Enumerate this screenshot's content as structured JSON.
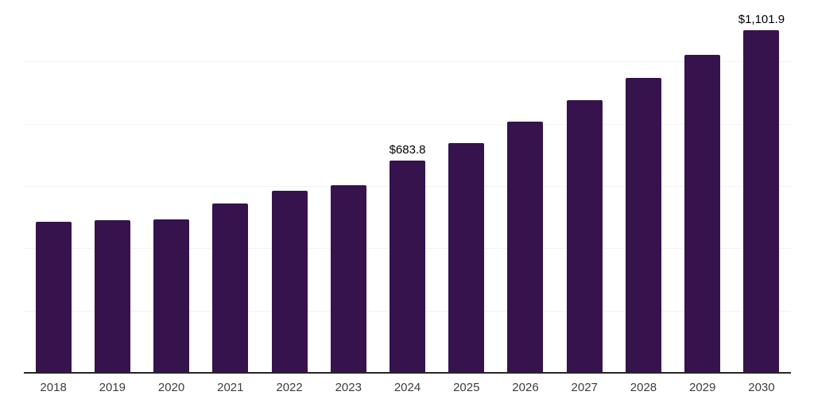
{
  "chart_data": {
    "type": "bar",
    "title": "",
    "xlabel": "",
    "ylabel": "",
    "categories": [
      "2018",
      "2019",
      "2020",
      "2021",
      "2022",
      "2023",
      "2024",
      "2025",
      "2026",
      "2027",
      "2028",
      "2029",
      "2030"
    ],
    "values": [
      488,
      492,
      496,
      546,
      588,
      606,
      683.8,
      741,
      809,
      879,
      949,
      1025,
      1101.9
    ],
    "bar_labels": [
      "",
      "",
      "",
      "",
      "",
      "",
      "$683.8",
      "",
      "",
      "",
      "",
      "",
      "$1,101.9"
    ],
    "ylim": [
      0,
      1200
    ],
    "gridline_step": 200,
    "grid": "horizontal",
    "legend_position": "none",
    "colors": {
      "bar": "#36134D",
      "axis_line": "#262626",
      "gridline": "#f2f2f2",
      "tick_label": "#3d3d3d",
      "value_label": "#000000",
      "background": "#ffffff"
    }
  }
}
